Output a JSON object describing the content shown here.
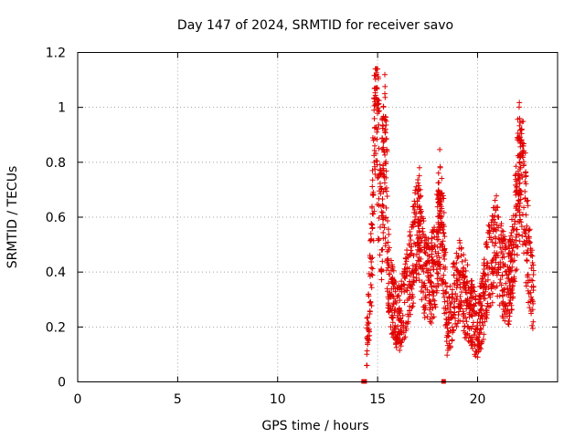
{
  "chart_data": {
    "type": "scatter",
    "title": "Day 147 of 2024, SRMTID for receiver savo",
    "xlabel": "GPS time / hours",
    "ylabel": "SRMTID / TECUs",
    "xlim": [
      0,
      24
    ],
    "ylim": [
      0,
      1.2
    ],
    "xticks": [
      0,
      5,
      10,
      15,
      20
    ],
    "xtick_labels": [
      "0",
      "5",
      "10",
      "15",
      "20"
    ],
    "yticks": [
      0,
      0.2,
      0.4,
      0.6,
      0.8,
      1,
      1.2
    ],
    "ytick_labels": [
      "0",
      "0.2",
      "0.4",
      "0.6",
      "0.8",
      "1",
      "1.2"
    ],
    "grid": true,
    "marker": "+",
    "color": "#e00000",
    "series": [
      {
        "name": "SRMTID",
        "profile": [
          [
            14.35,
            0.0
          ],
          [
            14.45,
            0.12
          ],
          [
            14.55,
            0.25
          ],
          [
            14.7,
            0.45
          ],
          [
            14.85,
            0.95
          ],
          [
            14.95,
            1.12
          ],
          [
            15.05,
            0.7
          ],
          [
            15.2,
            0.55
          ],
          [
            15.35,
            0.88
          ],
          [
            15.5,
            0.45
          ],
          [
            15.7,
            0.3
          ],
          [
            16.0,
            0.22
          ],
          [
            16.3,
            0.28
          ],
          [
            16.6,
            0.38
          ],
          [
            16.9,
            0.52
          ],
          [
            17.1,
            0.58
          ],
          [
            17.3,
            0.42
          ],
          [
            17.6,
            0.36
          ],
          [
            17.9,
            0.42
          ],
          [
            18.1,
            0.62
          ],
          [
            18.3,
            0.48
          ],
          [
            18.5,
            0.18
          ],
          [
            18.8,
            0.3
          ],
          [
            19.1,
            0.36
          ],
          [
            19.4,
            0.3
          ],
          [
            19.7,
            0.26
          ],
          [
            20.0,
            0.18
          ],
          [
            20.3,
            0.3
          ],
          [
            20.6,
            0.42
          ],
          [
            20.9,
            0.55
          ],
          [
            21.2,
            0.4
          ],
          [
            21.5,
            0.35
          ],
          [
            21.8,
            0.45
          ],
          [
            22.0,
            0.7
          ],
          [
            22.2,
            0.85
          ],
          [
            22.4,
            0.6
          ],
          [
            22.6,
            0.4
          ],
          [
            22.8,
            0.3
          ]
        ],
        "special": [
          [
            14.3,
            0.0
          ],
          [
            14.35,
            0.0
          ],
          [
            18.3,
            0.0
          ]
        ]
      }
    ]
  }
}
